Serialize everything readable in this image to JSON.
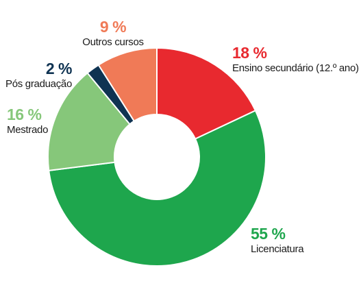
{
  "chart_data": {
    "type": "pie",
    "donut": true,
    "slices": [
      {
        "label": "Ensino secundário (12.º ano)",
        "value": 18,
        "value_label": "18 %",
        "color": "#e8292f"
      },
      {
        "label": "Licenciatura",
        "value": 55,
        "value_label": "55 %",
        "color": "#1ea64d"
      },
      {
        "label": "Mestrado",
        "value": 16,
        "value_label": "16 %",
        "color": "#86c77a"
      },
      {
        "label": "Pós graduação",
        "value": 2,
        "value_label": "2 %",
        "color": "#0f3352"
      },
      {
        "label": "Outros cursos",
        "value": 9,
        "value_label": "9 %",
        "color": "#f07a57"
      }
    ]
  }
}
